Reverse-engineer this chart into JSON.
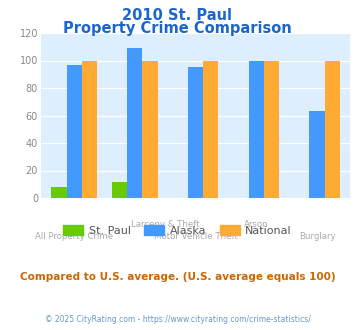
{
  "title_line1": "2010 St. Paul",
  "title_line2": "Property Crime Comparison",
  "st_paul_values": [
    8,
    12,
    0,
    0,
    0
  ],
  "alaska_values": [
    97,
    109,
    95,
    100,
    63
  ],
  "national_values": [
    100,
    100,
    100,
    100,
    100
  ],
  "st_paul_color": "#66cc00",
  "alaska_color": "#4499ff",
  "national_color": "#ffaa33",
  "ylim": [
    0,
    120
  ],
  "yticks": [
    0,
    20,
    40,
    60,
    80,
    100,
    120
  ],
  "bg_color": "#ddeeff",
  "subtitle_note": "Compared to U.S. average. (U.S. average equals 100)",
  "footer": "© 2025 CityRating.com - https://www.cityrating.com/crime-statistics/",
  "title_color": "#1a66cc",
  "subtitle_color": "#cc6600",
  "footer_color": "#6699cc",
  "label_color": "#aaaaaa",
  "legend_text_color": "#555555",
  "bar_width": 0.25
}
